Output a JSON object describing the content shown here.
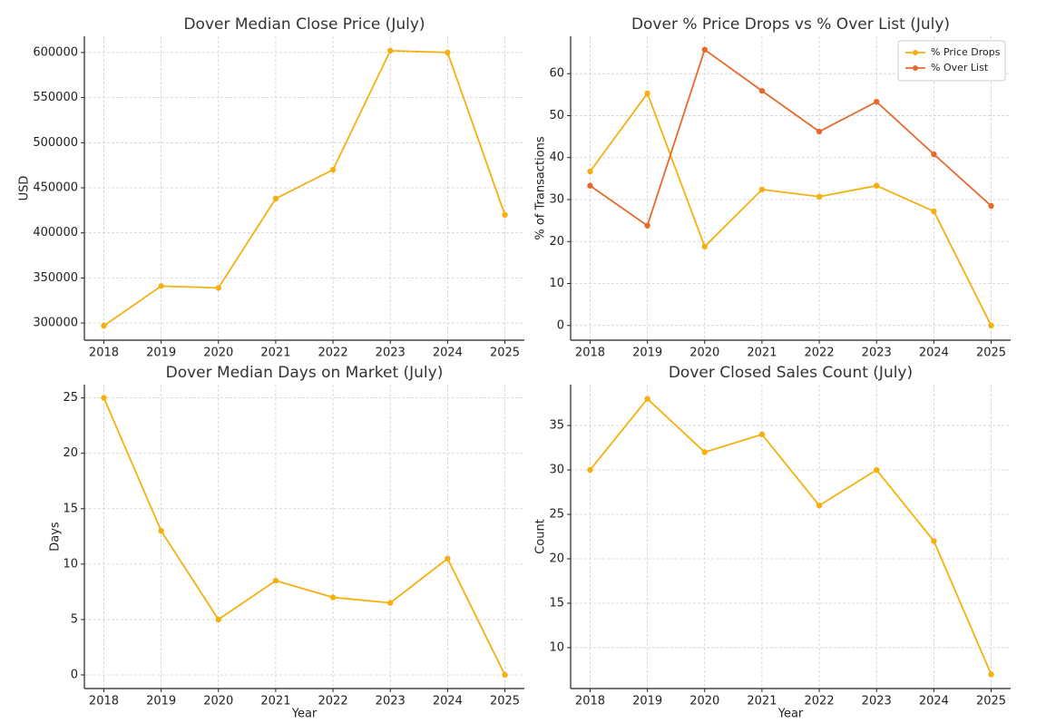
{
  "chart_data": [
    {
      "type": "line",
      "title": "Dover Median Close Price (July)",
      "ylabel": "USD",
      "x": [
        2018,
        2019,
        2020,
        2021,
        2022,
        2023,
        2024,
        2025
      ],
      "series": [
        {
          "name": null,
          "color": "#f5b00f",
          "values": [
            297000,
            341000,
            339000,
            438000,
            470000,
            602000,
            600000,
            420000
          ]
        }
      ],
      "xlim": [
        2017.66,
        2025.34
      ],
      "xticks": [
        2018,
        2019,
        2020,
        2021,
        2022,
        2023,
        2024,
        2025
      ],
      "ylim": [
        281000,
        618000
      ],
      "yticks": [
        300000,
        350000,
        400000,
        450000,
        500000,
        550000,
        600000
      ],
      "grid": true
    },
    {
      "type": "line",
      "title": "Dover % Price Drops vs % Over List (July)",
      "ylabel": "% of Transactions",
      "x": [
        2018,
        2019,
        2020,
        2021,
        2022,
        2023,
        2024,
        2025
      ],
      "series": [
        {
          "name": "% Price Drops",
          "color": "#f5b00f",
          "values": [
            36.7,
            55.3,
            18.8,
            32.4,
            30.7,
            33.3,
            27.2,
            0
          ]
        },
        {
          "name": "% Over List",
          "color": "#e8692e",
          "values": [
            33.3,
            23.8,
            65.7,
            55.9,
            46.2,
            53.3,
            40.8,
            28.5
          ]
        }
      ],
      "xlim": [
        2017.66,
        2025.34
      ],
      "xticks": [
        2018,
        2019,
        2020,
        2021,
        2022,
        2023,
        2024,
        2025
      ],
      "ylim": [
        -3.5,
        68.9
      ],
      "yticks": [
        0,
        10,
        20,
        30,
        40,
        50,
        60
      ],
      "grid": true,
      "legend": "upper-right"
    },
    {
      "type": "line",
      "title": "Dover Median Days on Market (July)",
      "xlabel": "Year",
      "ylabel": "Days",
      "x": [
        2018,
        2019,
        2020,
        2021,
        2022,
        2023,
        2024,
        2025
      ],
      "series": [
        {
          "name": null,
          "color": "#f5b00f",
          "values": [
            25,
            13,
            5,
            8.5,
            7,
            6.5,
            10.5,
            0
          ]
        }
      ],
      "xlim": [
        2017.66,
        2025.34
      ],
      "xticks": [
        2018,
        2019,
        2020,
        2021,
        2022,
        2023,
        2024,
        2025
      ],
      "ylim": [
        -1.23,
        26.2
      ],
      "yticks": [
        0,
        5,
        10,
        15,
        20,
        25
      ],
      "grid": true
    },
    {
      "type": "line",
      "title": "Dover Closed Sales Count (July)",
      "xlabel": "Year",
      "ylabel": "Count",
      "x": [
        2018,
        2019,
        2020,
        2021,
        2022,
        2023,
        2024,
        2025
      ],
      "series": [
        {
          "name": null,
          "color": "#f5b00f",
          "values": [
            30,
            38,
            32,
            34,
            26,
            30,
            22,
            7
          ]
        }
      ],
      "xlim": [
        2017.66,
        2025.34
      ],
      "xticks": [
        2018,
        2019,
        2020,
        2021,
        2022,
        2023,
        2024,
        2025
      ],
      "ylim": [
        5.4,
        39.6
      ],
      "yticks": [
        10,
        15,
        20,
        25,
        30,
        35
      ],
      "grid": true
    }
  ]
}
